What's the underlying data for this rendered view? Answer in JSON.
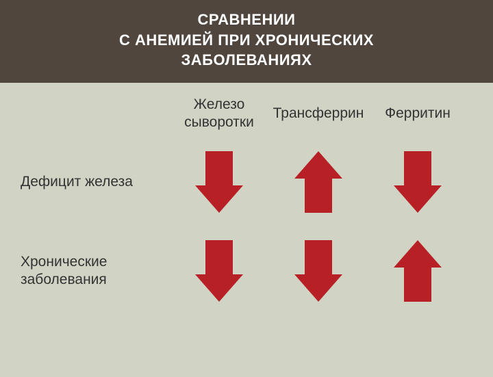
{
  "header": {
    "line1": "СРАВНЕНИИ",
    "line2": "С АНЕМИЕЙ ПРИ ХРОНИЧЕСКИХ",
    "line3": "ЗАБОЛЕВАНИЯХ",
    "bg_color": "#50463e",
    "text_color": "#ffffff",
    "fontsize": 22
  },
  "content": {
    "bg_color": "#d1d3c4",
    "text_color": "#333333",
    "label_fontsize": 21
  },
  "columns": [
    {
      "key": "serum_iron",
      "label": "Железо сыворотки"
    },
    {
      "key": "transferrin",
      "label": "Трансферрин"
    },
    {
      "key": "ferritin",
      "label": "Ферритин"
    }
  ],
  "rows": [
    {
      "key": "iron_deficiency",
      "label": "Дефицит железа",
      "arrows": [
        "down",
        "up",
        "down"
      ]
    },
    {
      "key": "chronic_disease",
      "label": "Хронические заболевания",
      "label_multiline": [
        "Хронические",
        "заболевания"
      ],
      "arrows": [
        "down",
        "down",
        "up"
      ]
    }
  ],
  "arrow_style": {
    "fill_color": "#b72025",
    "width": 70,
    "height": 90,
    "shaft_width": 40,
    "head_height": 40
  }
}
